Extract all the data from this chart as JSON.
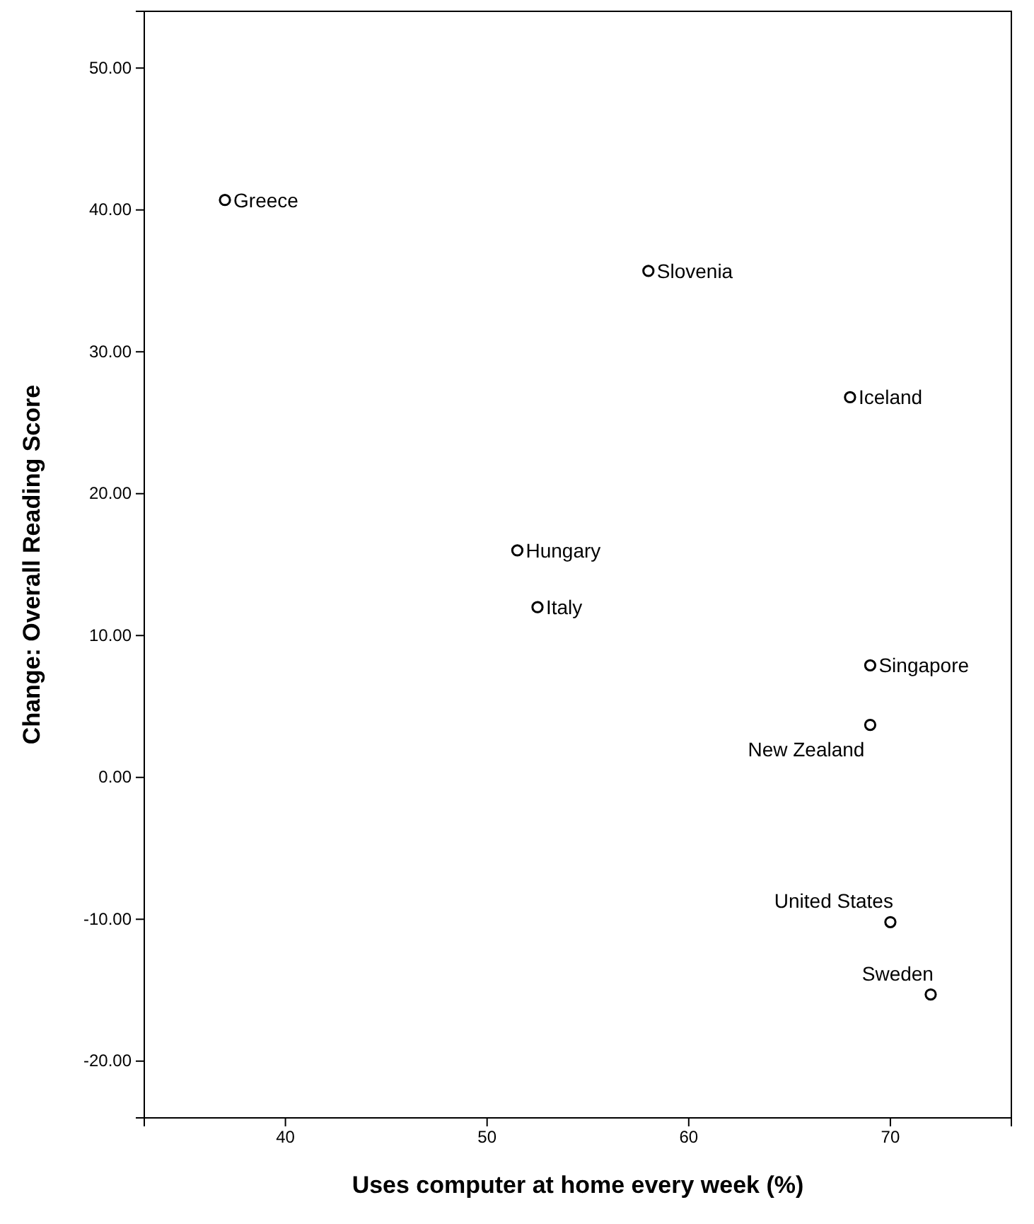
{
  "chart_data": {
    "type": "scatter",
    "xlabel": "Uses computer at home every week (%)",
    "ylabel": "Change: Overall Reading Score",
    "x": [
      37,
      58,
      68,
      51.5,
      52.5,
      69,
      69,
      70,
      72
    ],
    "values": [
      40.7,
      35.7,
      26.8,
      16.0,
      12.0,
      7.9,
      3.7,
      -10.2,
      -15.3
    ],
    "color": "#000000",
    "marker": "circle",
    "grid": false,
    "xlim": [
      33,
      76
    ],
    "xticks": [
      40,
      50,
      60,
      70
    ],
    "ylim": [
      -24,
      54
    ],
    "yticks": [
      {
        "value": -20,
        "label": "-20.00"
      },
      {
        "value": -10,
        "label": "-10.00"
      },
      {
        "value": 0,
        "label": "0.00"
      },
      {
        "value": 10,
        "label": "10.00"
      },
      {
        "value": 20,
        "label": "20.00"
      },
      {
        "value": 30,
        "label": "30.00"
      },
      {
        "value": 40,
        "label": "40.00"
      },
      {
        "value": 50,
        "label": "50.00"
      }
    ],
    "annotations": [
      {
        "text": "Greece",
        "x": 37,
        "y": 40.7
      },
      {
        "text": "Slovenia",
        "x": 58,
        "y": 35.7
      },
      {
        "text": "Iceland",
        "x": 68,
        "y": 26.8
      },
      {
        "text": "Hungary",
        "x": 51.5,
        "y": 16.0
      },
      {
        "text": "Italy",
        "x": 52.5,
        "y": 12.0
      },
      {
        "text": "Singapore",
        "x": 69,
        "y": 7.9
      },
      {
        "text": "New Zealand",
        "x": 69,
        "y": 3.7
      },
      {
        "text": "United States",
        "x": 70,
        "y": -10.2
      },
      {
        "text": "Sweden",
        "x": 72,
        "y": -15.3
      }
    ]
  }
}
